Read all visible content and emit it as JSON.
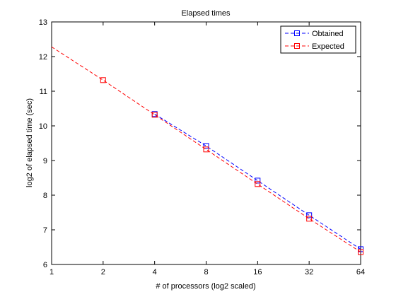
{
  "chart_data": {
    "type": "line",
    "title": "Elapsed times",
    "xlabel": "# of processors (log2 scaled)",
    "ylabel": "log2 of elapsed time (sec)",
    "x_scale": "log2",
    "xlim": [
      1,
      64
    ],
    "ylim": [
      6,
      13
    ],
    "x_ticks": [
      1,
      2,
      4,
      8,
      16,
      32,
      64
    ],
    "x_tick_labels": [
      "1",
      "2",
      "4",
      "8",
      "16",
      "32",
      "64"
    ],
    "y_ticks": [
      6,
      7,
      8,
      9,
      10,
      11,
      12,
      13
    ],
    "y_tick_labels": [
      "6",
      "7",
      "8",
      "9",
      "10",
      "11",
      "12",
      "13"
    ],
    "grid": false,
    "legend_position": "top-right",
    "series": [
      {
        "name": "Obtained",
        "color": "#0000ff",
        "line_style": "dashed",
        "marker": "square",
        "x": [
          4,
          8,
          16,
          32,
          64
        ],
        "y": [
          10.34,
          9.42,
          8.42,
          7.42,
          6.44
        ]
      },
      {
        "name": "Expected",
        "color": "#ff0000",
        "line_style": "dashed",
        "marker": "square",
        "line_x": [
          1,
          2,
          4,
          8,
          16,
          32,
          64
        ],
        "line_y": [
          12.28,
          11.32,
          10.32,
          9.32,
          8.32,
          7.32,
          6.36
        ],
        "x": [
          2,
          4,
          8,
          16,
          32,
          64
        ],
        "y": [
          11.32,
          10.32,
          9.32,
          8.32,
          7.32,
          6.36
        ]
      }
    ]
  }
}
